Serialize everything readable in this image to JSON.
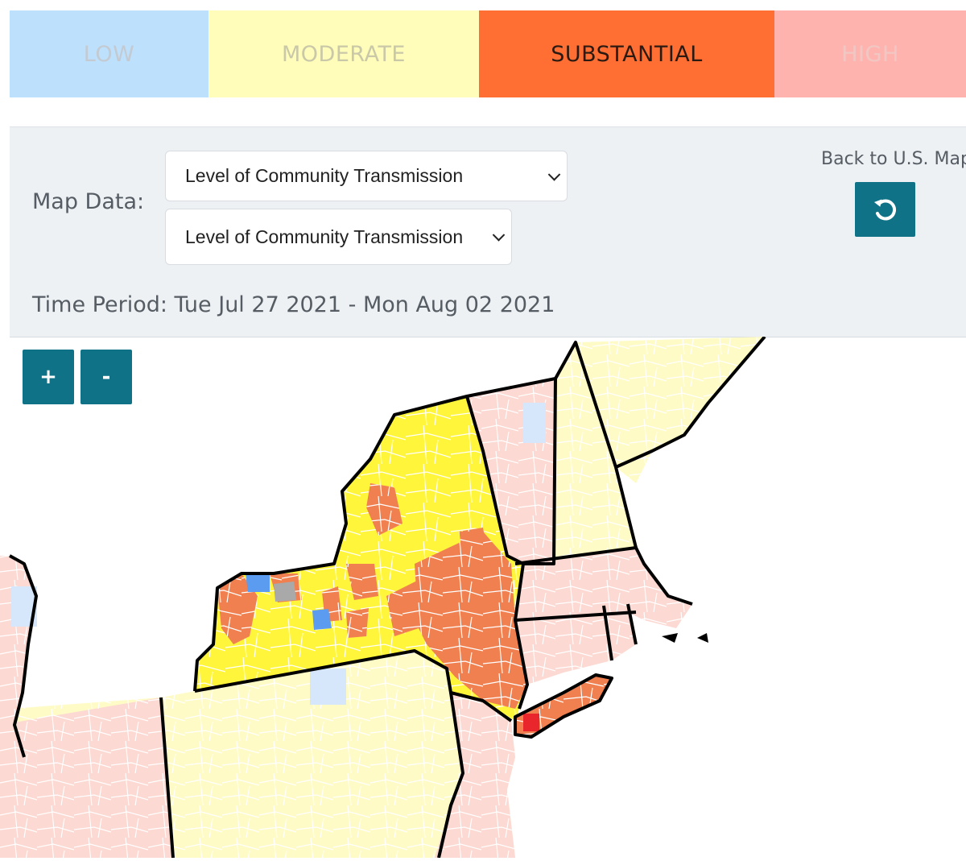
{
  "legend": {
    "items": [
      {
        "label": "LOW",
        "bg": "#bde0fd",
        "color": "#c4cad1"
      },
      {
        "label": "MODERATE",
        "bg": "#fffdb9",
        "color": "#c9c8a8"
      },
      {
        "label": "SUBSTANTIAL",
        "bg": "#ff6f33",
        "color": "#2b1a12"
      },
      {
        "label": "HIGH",
        "bg": "#ffb3ae",
        "color": "#f1c7c4"
      }
    ]
  },
  "controls": {
    "map_data_label": "Map Data:",
    "select_primary": "Level of Community Transmission",
    "select_secondary": "Level of Community Transmission",
    "time_period": "Time Period: Tue Jul 27 2021 - Mon Aug 02 2021",
    "back_label": "Back to U.S. Map",
    "reset_icon": "undo-icon"
  },
  "zoom": {
    "in_label": "+",
    "out_label": "-"
  },
  "map": {
    "colors": {
      "low": "#5b9cf0",
      "low_light": "#d6e7fb",
      "moderate_pale": "#fffbc7",
      "moderate_bright": "#fff53a",
      "substantial": "#f08050",
      "high_pale": "#fcd9d2",
      "high_pink": "#fbc3c3",
      "high_red": "#e8262b",
      "no_data": "#a9a9a9",
      "border": "#000000"
    }
  }
}
